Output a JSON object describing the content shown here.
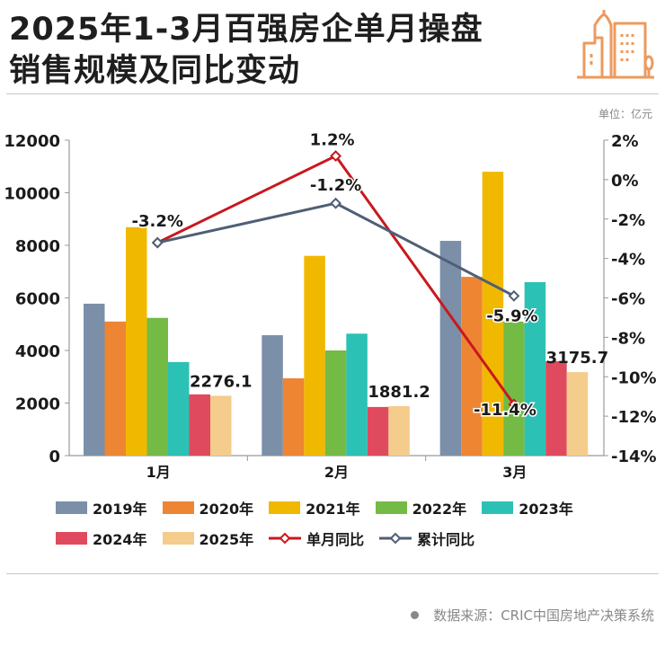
{
  "header": {
    "title_line1": "2025年1-3月百强房企单月操盘",
    "title_line2": "销售规模及同比变动",
    "logo_icon": "city-buildings-icon",
    "unit_label": "单位：亿元"
  },
  "footer": {
    "source": "数据来源：CRIC中国房地产决策系统"
  },
  "chart_data": {
    "type": "bar",
    "title": "2025年1-3月百强房企单月操盘销售规模及同比变动",
    "categories": [
      "1月",
      "2月",
      "3月"
    ],
    "ylabel": "亿元",
    "ylim": [
      0,
      12000
    ],
    "yticks": [
      0,
      2000,
      4000,
      6000,
      8000,
      10000,
      12000
    ],
    "y2lim": [
      -14,
      2
    ],
    "y2ticks": [
      "2%",
      "0%",
      "-2%",
      "-4%",
      "-6%",
      "-8%",
      "-10%",
      "-12%",
      "-14%"
    ],
    "y2tick_values": [
      2,
      0,
      -2,
      -4,
      -6,
      -8,
      -10,
      -12,
      -14
    ],
    "grid": false,
    "legend_position": "bottom",
    "series": [
      {
        "name": "2019年",
        "type": "bar",
        "color": "#7b8fa9",
        "values": [
          5780,
          4580,
          8170
        ]
      },
      {
        "name": "2020年",
        "type": "bar",
        "color": "#ee8532",
        "values": [
          5100,
          2940,
          6800
        ]
      },
      {
        "name": "2021年",
        "type": "bar",
        "color": "#f1b800",
        "values": [
          8690,
          7600,
          10800
        ]
      },
      {
        "name": "2022年",
        "type": "bar",
        "color": "#74bb45",
        "values": [
          5240,
          4000,
          5100
        ]
      },
      {
        "name": "2023年",
        "type": "bar",
        "color": "#2cc1b5",
        "values": [
          3560,
          4640,
          6600
        ]
      },
      {
        "name": "2024年",
        "type": "bar",
        "color": "#e04a5e",
        "values": [
          2330,
          1850,
          3590
        ]
      },
      {
        "name": "2025年",
        "type": "bar",
        "color": "#f4cc8c",
        "values": [
          2276.1,
          1881.2,
          3175.7
        ],
        "labels": [
          "2276.1",
          "1881.2",
          "3175.7"
        ]
      },
      {
        "name": "单月同比",
        "type": "line",
        "axis": "right",
        "color": "#c9181e",
        "values": [
          -3.2,
          1.2,
          -11.4
        ],
        "labels": [
          "",
          "1.2%",
          "-11.4%"
        ]
      },
      {
        "name": "累计同比",
        "type": "line",
        "axis": "right",
        "color": "#4f5f75",
        "values": [
          -3.2,
          -1.2,
          -5.9
        ],
        "labels": [
          "-3.2%",
          "-1.2%",
          "-5.9%"
        ]
      }
    ]
  }
}
